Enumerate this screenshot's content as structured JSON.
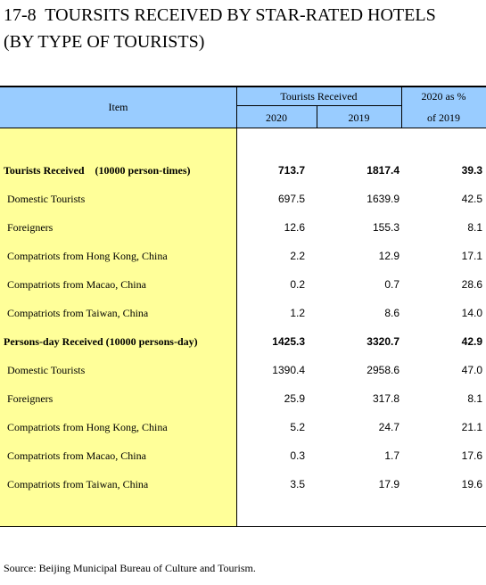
{
  "header": {
    "title_line1": "17-8  TOURSITS RECEIVED BY STAR-RATED HOTELS",
    "title_line2": "(BY TYPE OF TOURISTS)"
  },
  "table": {
    "columns": {
      "item": "Item",
      "group": "Tourists Received",
      "col2020": "2020",
      "col2019": "2019",
      "pct_line1": "2020 as %",
      "pct_line2": "of 2019"
    },
    "rows": [
      [
        "Tourists Received    (10000 person-times)",
        "713.7",
        "1817.4",
        "39.3"
      ],
      [
        "Domestic Tourists",
        "697.5",
        "1639.9",
        "42.5"
      ],
      [
        "Foreigners",
        "12.6",
        "155.3",
        "8.1"
      ],
      [
        "Compatriots from Hong Kong, China",
        "2.2",
        "12.9",
        "17.1"
      ],
      [
        "Compatriots from Macao, China",
        "0.2",
        "0.7",
        "28.6"
      ],
      [
        "Compatriots from Taiwan, China",
        "1.2",
        "8.6",
        "14.0"
      ],
      [
        "Persons-day Received (10000 persons-day)",
        "1425.3",
        "3320.7",
        "42.9"
      ],
      [
        "Domestic Tourists",
        "1390.4",
        "2958.6",
        "47.0"
      ],
      [
        "Foreigners",
        "25.9",
        "317.8",
        "8.1"
      ],
      [
        "Compatriots from Hong Kong, China",
        "5.2",
        "24.7",
        "21.1"
      ],
      [
        "Compatriots from Macao, China",
        "0.3",
        "1.7",
        "17.6"
      ],
      [
        "Compatriots from Taiwan, China",
        "3.5",
        "17.9",
        "19.6"
      ]
    ]
  },
  "footer": {
    "source": "Source: Beijing Municipal Bureau of Culture and Tourism."
  }
}
